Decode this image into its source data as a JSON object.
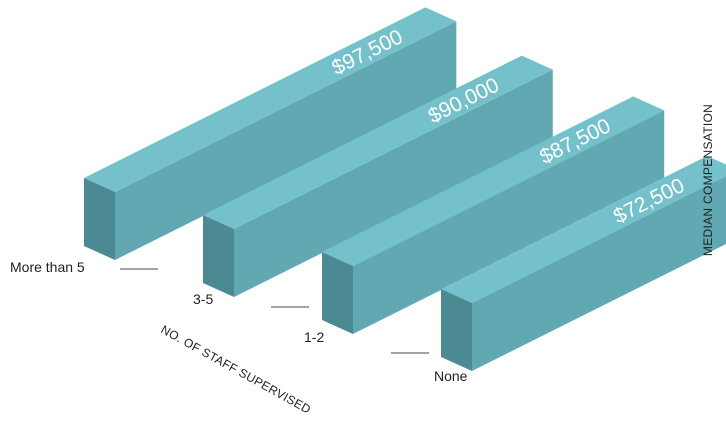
{
  "chart_data": {
    "type": "bar",
    "categories": [
      "More than 5",
      "3-5",
      "1-2",
      "None"
    ],
    "values": [
      97500,
      90000,
      87500,
      72500
    ],
    "value_labels": [
      "$97,500",
      "$90,000",
      "$87,500",
      "$72,500"
    ],
    "xlabel": "NO. OF STAFF SUPERVISED",
    "ylabel": "MEDIAN COMPENSATION",
    "colors": {
      "top": "#74c1cb",
      "front": "#62a8b3",
      "side": "#4c8a93"
    }
  }
}
